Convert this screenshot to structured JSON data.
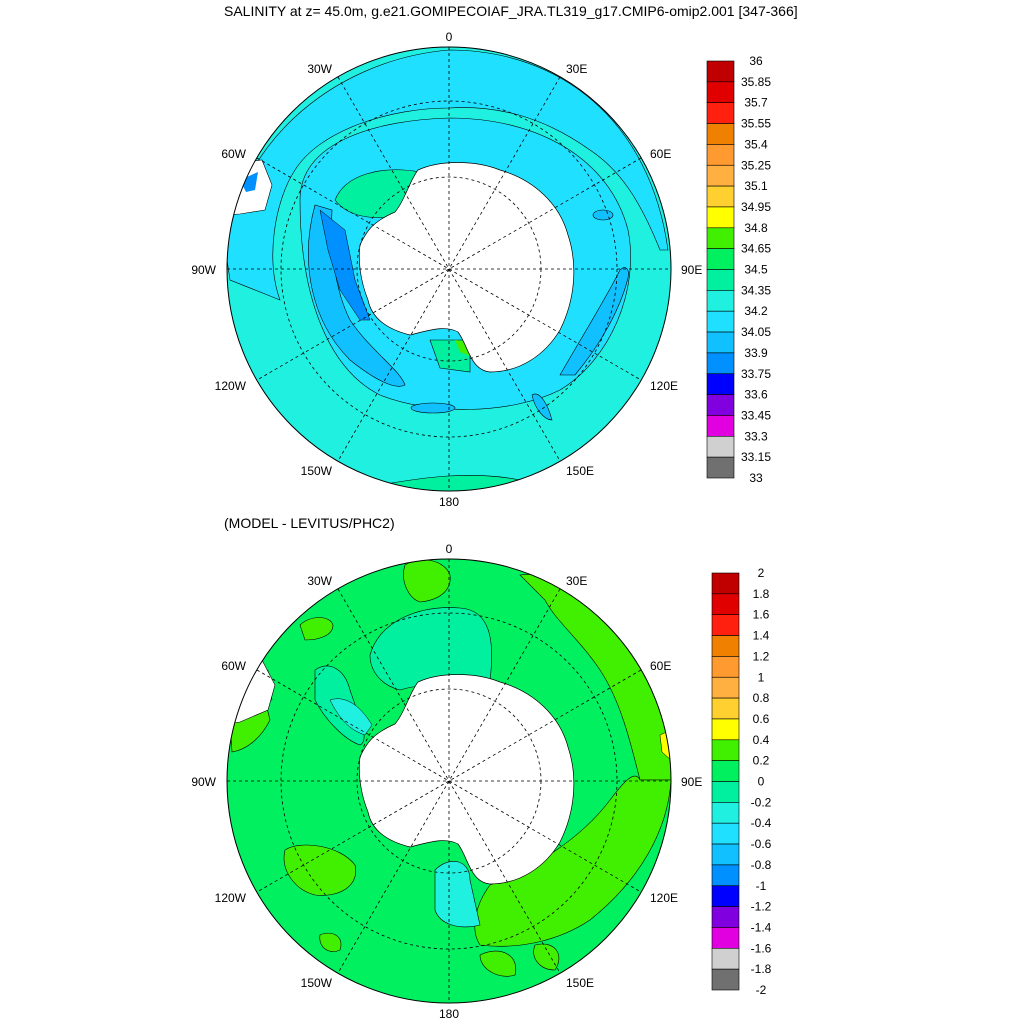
{
  "top_panel": {
    "title": "SALINITY at z=  45.0m, g.e21.GOMIPECOIAF_JRA.TL319_g17.CMIP6-omip2.001 [347-366]",
    "longitude_labels": [
      "0",
      "30E",
      "60E",
      "90E",
      "120E",
      "150E",
      "180",
      "150W",
      "120W",
      "90W",
      "60W",
      "30W"
    ],
    "colorbar": {
      "labels": [
        "36",
        "35.85",
        "35.7",
        "35.55",
        "35.4",
        "35.25",
        "35.1",
        "34.95",
        "34.8",
        "34.65",
        "34.5",
        "34.35",
        "34.2",
        "34.05",
        "33.9",
        "33.75",
        "33.6",
        "33.45",
        "33.3",
        "33.15",
        "33"
      ],
      "colors": [
        "#c00000",
        "#e00000",
        "#ff2010",
        "#f08000",
        "#ff9a30",
        "#ffb040",
        "#ffd030",
        "#ffff00",
        "#40f000",
        "#00f060",
        "#00f0a0",
        "#20f0e0",
        "#20e0ff",
        "#10c0ff",
        "#0090ff",
        "#0000ff",
        "#8000e0",
        "#e000e0",
        "#d0d0d0",
        "#707070"
      ]
    }
  },
  "bottom_panel": {
    "title": "(MODEL - LEVITUS/PHC2)",
    "longitude_labels": [
      "0",
      "30E",
      "60E",
      "90E",
      "120E",
      "150E",
      "180",
      "150W",
      "120W",
      "90W",
      "60W",
      "30W"
    ],
    "colorbar": {
      "labels": [
        "2",
        "1.8",
        "1.6",
        "1.4",
        "1.2",
        "1",
        "0.8",
        "0.6",
        "0.4",
        "0.2",
        "0",
        "-0.2",
        "-0.4",
        "-0.6",
        "-0.8",
        "-1",
        "-1.2",
        "-1.4",
        "-1.6",
        "-1.8",
        "-2"
      ],
      "colors": [
        "#c00000",
        "#e00000",
        "#ff2010",
        "#f08000",
        "#ff9a30",
        "#ffb040",
        "#ffd030",
        "#ffff00",
        "#40f000",
        "#00f060",
        "#00f0a0",
        "#20f0e0",
        "#20e0ff",
        "#10c0ff",
        "#0090ff",
        "#0000ff",
        "#8000e0",
        "#e000e0",
        "#d0d0d0",
        "#707070"
      ]
    }
  }
}
